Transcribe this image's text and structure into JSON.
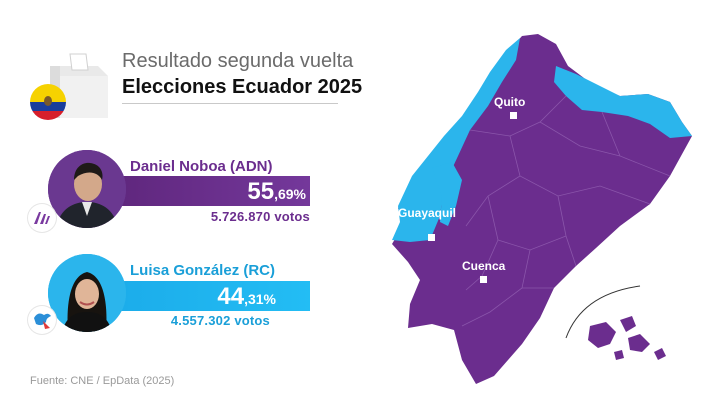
{
  "header": {
    "title_line1": "Resultado segunda vuelta",
    "title_line2": "Elecciones Ecuador 2025"
  },
  "candidates": [
    {
      "name": "Daniel Noboa (ADN)",
      "pct_int": "55",
      "pct_dec": ",69%",
      "share_percent": 55.69,
      "votes": "5.726.870 votos",
      "color": "#6b2d8e",
      "logo_text": "ADN"
    },
    {
      "name": "Luisa González (RC)",
      "pct_int": "44",
      "pct_dec": ",31%",
      "share_percent": 44.31,
      "votes": "4.557.302 votos",
      "color": "#1ab0ec"
    }
  ],
  "map": {
    "cities": [
      "Quito",
      "Guayaquil",
      "Cuenca"
    ],
    "colors": {
      "noboa": "#6b2d8e",
      "gonzalez": "#2bb5ec",
      "borders": "#8a55aa"
    }
  },
  "source": "Fuente: CNE / EpData (2025)"
}
